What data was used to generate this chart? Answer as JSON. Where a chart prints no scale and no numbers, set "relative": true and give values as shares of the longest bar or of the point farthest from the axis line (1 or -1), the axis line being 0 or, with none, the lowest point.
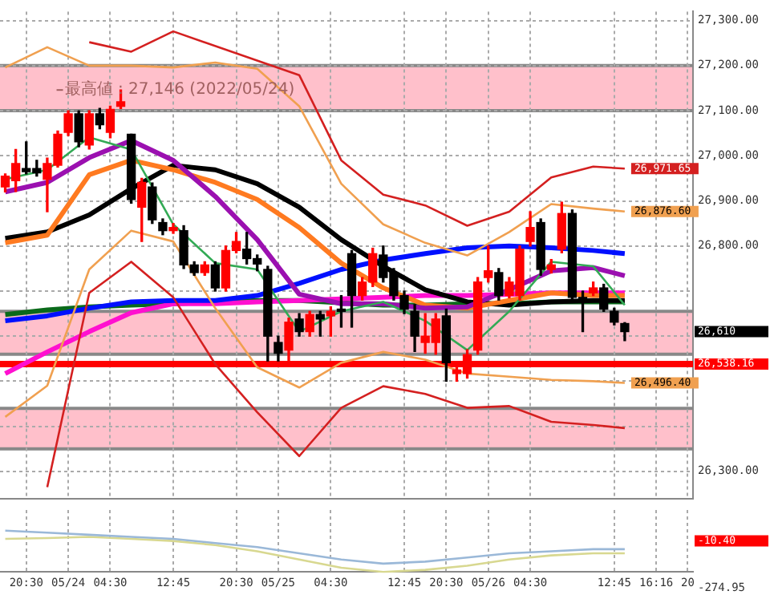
{
  "chart_data": [
    {
      "type": "candlestick",
      "categories": [
        null,
        null,
        null,
        null,
        null,
        null,
        null,
        null,
        null,
        null,
        null,
        null,
        null,
        null,
        null,
        null,
        null,
        null,
        null,
        null,
        null,
        null,
        null,
        null,
        null,
        null,
        null,
        null,
        null,
        null,
        null,
        null,
        null,
        null,
        null,
        null,
        null,
        null,
        null,
        null,
        null,
        null,
        null,
        null,
        null,
        null,
        null,
        null,
        null,
        null,
        null,
        null,
        null,
        null,
        null,
        null,
        null,
        null,
        null,
        null,
        null,
        null,
        null,
        null,
        null,
        null
      ],
      "ohlc": [
        [
          26931,
          26960,
          26920,
          26955
        ],
        [
          26945,
          27014,
          26921,
          26983
        ],
        [
          26972,
          27031,
          26960,
          26965
        ],
        [
          26972,
          26990,
          26955,
          26962
        ],
        [
          26948,
          26995,
          26876,
          26983
        ],
        [
          26979,
          27055,
          26975,
          27048
        ],
        [
          27052,
          27100,
          27045,
          27093
        ],
        [
          27093,
          27100,
          27020,
          27031
        ],
        [
          27024,
          27100,
          27015,
          27093
        ],
        [
          27093,
          27105,
          27060,
          27069
        ],
        [
          27052,
          27110,
          27040,
          27103
        ],
        [
          27110,
          27146,
          27105,
          27120
        ],
        [
          27048,
          27048,
          26895,
          26903
        ],
        [
          26886,
          26950,
          26810,
          26941
        ],
        [
          26931,
          26940,
          26850,
          26858
        ],
        [
          26852,
          26860,
          26825,
          26834
        ],
        [
          26834,
          26850,
          26828,
          26841
        ],
        [
          26834,
          26845,
          26750,
          26758
        ],
        [
          26758,
          26765,
          26735,
          26741
        ],
        [
          26741,
          26765,
          26735,
          26758
        ],
        [
          26758,
          26765,
          26700,
          26707
        ],
        [
          26707,
          26800,
          26700,
          26790
        ],
        [
          26790,
          26830,
          26785,
          26810
        ],
        [
          26793,
          26830,
          26760,
          26772
        ],
        [
          26772,
          26780,
          26745,
          26760
        ],
        [
          26748,
          26755,
          26545,
          26600
        ],
        [
          26586,
          26600,
          26545,
          26562
        ],
        [
          26569,
          26640,
          26540,
          26631
        ],
        [
          26638,
          26650,
          26600,
          26610
        ],
        [
          26610,
          26655,
          26600,
          26648
        ],
        [
          26648,
          26655,
          26600,
          26638
        ],
        [
          26645,
          26665,
          26600,
          26655
        ],
        [
          26660,
          26690,
          26620,
          26655
        ],
        [
          26783,
          26790,
          26620,
          26690
        ],
        [
          26690,
          26730,
          26680,
          26720
        ],
        [
          26720,
          26795,
          26710,
          26783
        ],
        [
          26780,
          26800,
          26720,
          26730
        ],
        [
          26741,
          26750,
          26680,
          26690
        ],
        [
          26690,
          26700,
          26650,
          26660
        ],
        [
          26655,
          26670,
          26566,
          26600
        ],
        [
          26586,
          26650,
          26562,
          26600
        ],
        [
          26586,
          26650,
          26560,
          26638
        ],
        [
          26645,
          26660,
          26500,
          26541
        ],
        [
          26517,
          26535,
          26500,
          26525
        ],
        [
          26517,
          26570,
          26507,
          26559
        ],
        [
          26569,
          26730,
          26560,
          26720
        ],
        [
          26730,
          26800,
          26720,
          26745
        ],
        [
          26741,
          26750,
          26680,
          26690
        ],
        [
          26690,
          26730,
          26685,
          26720
        ],
        [
          26690,
          26800,
          26680,
          26793
        ],
        [
          26810,
          26876,
          26800,
          26841
        ],
        [
          26852,
          26860,
          26735,
          26748
        ],
        [
          26748,
          26770,
          26740,
          26758
        ],
        [
          26793,
          26897,
          26785,
          26872
        ],
        [
          26872,
          26880,
          26680,
          26686
        ],
        [
          26686,
          26700,
          26610,
          26680
        ],
        [
          26696,
          26720,
          26690,
          26707
        ],
        [
          26707,
          26715,
          26655,
          26660
        ],
        [
          26655,
          26662,
          26625,
          26631
        ],
        [
          26628,
          26630,
          26590,
          26610
        ],
        null,
        null,
        null,
        null,
        null,
        null
      ],
      "series": [
        {
          "type": "line",
          "color": "#d42020",
          "values": [
            null,
            null,
            null,
            null,
            null,
            null,
            null,
            null,
            27252,
            null,
            null,
            null,
            27231,
            null,
            null,
            null,
            27276,
            null,
            null,
            null,
            null,
            null,
            null,
            null,
            null,
            null,
            null,
            null,
            27179,
            null,
            null,
            null,
            26990,
            null,
            null,
            null,
            26914,
            null,
            null,
            null,
            26890,
            null,
            null,
            null,
            26845,
            null,
            null,
            null,
            26876,
            null,
            null,
            null,
            26952,
            null,
            null,
            null,
            26976,
            null,
            null,
            26971.65,
            null,
            null,
            null,
            null,
            null,
            null
          ],
          "value_labels": [
            null,
            null,
            null,
            null,
            null,
            null,
            null,
            null,
            null,
            null,
            null,
            null,
            null,
            null,
            null,
            null,
            null,
            null,
            null,
            null,
            null,
            null,
            null,
            null,
            null,
            null,
            null,
            null,
            null,
            null,
            null,
            null,
            null,
            null,
            null,
            null,
            null,
            null,
            null,
            null,
            null,
            null,
            null,
            null,
            null,
            null,
            null,
            null,
            null,
            null,
            null,
            null,
            null,
            null,
            null,
            null,
            null,
            null,
            null,
            "26,971.65",
            null,
            null,
            null,
            null,
            null,
            null
          ]
        },
        {
          "type": "line",
          "color": "#f0a050",
          "values": [
            27196,
            null,
            null,
            null,
            27241,
            null,
            null,
            null,
            27200,
            null,
            null,
            null,
            27200,
            null,
            null,
            null,
            27196,
            null,
            null,
            null,
            27207,
            null,
            null,
            null,
            27193,
            null,
            null,
            null,
            27110,
            null,
            null,
            null,
            26938,
            null,
            null,
            null,
            26848,
            null,
            null,
            null,
            26807,
            null,
            null,
            null,
            26779,
            null,
            null,
            null,
            26831,
            null,
            null,
            null,
            26893,
            null,
            null,
            null,
            26883,
            null,
            null,
            26876.6,
            null,
            null,
            null,
            null,
            null,
            null
          ],
          "value_labels": [
            null,
            null,
            null,
            null,
            null,
            null,
            null,
            null,
            null,
            null,
            null,
            null,
            null,
            null,
            null,
            null,
            null,
            null,
            null,
            null,
            null,
            null,
            null,
            null,
            null,
            null,
            null,
            null,
            null,
            null,
            null,
            null,
            null,
            null,
            null,
            null,
            null,
            null,
            null,
            null,
            null,
            null,
            null,
            null,
            null,
            null,
            null,
            null,
            null,
            null,
            null,
            null,
            null,
            null,
            null,
            null,
            null,
            null,
            null,
            "26,876.60",
            null,
            null,
            null,
            null,
            null,
            null
          ]
        },
        {
          "type": "line",
          "color": "#33aa55",
          "values": [
            26948,
            null,
            null,
            null,
            26969,
            null,
            null,
            null,
            27041,
            null,
            null,
            null,
            27014,
            null,
            null,
            null,
            26848,
            null,
            null,
            null,
            26762,
            null,
            null,
            null,
            26748,
            null,
            null,
            null,
            26610,
            null,
            null,
            null,
            26655,
            null,
            null,
            null,
            26676,
            null,
            null,
            null,
            26634,
            null,
            null,
            null,
            26569,
            null,
            null,
            null,
            26655,
            null,
            null,
            null,
            26765,
            null,
            null,
            null,
            26755,
            null,
            null,
            26669,
            null,
            null,
            null,
            null,
            null,
            null
          ]
        },
        {
          "type": "line",
          "color": "#f0a050",
          "values": [
            26421,
            null,
            null,
            null,
            26490,
            null,
            null,
            null,
            26748,
            null,
            null,
            null,
            26834,
            null,
            null,
            null,
            26810,
            null,
            null,
            null,
            26662,
            null,
            null,
            null,
            26531,
            null,
            null,
            null,
            26486,
            null,
            null,
            null,
            26541,
            null,
            null,
            null,
            26565,
            null,
            null,
            null,
            26548,
            null,
            null,
            null,
            26517,
            null,
            null,
            null,
            26510,
            null,
            null,
            null,
            26503,
            null,
            null,
            null,
            26500,
            null,
            null,
            26496.4,
            null,
            null,
            null,
            null,
            null,
            null
          ],
          "value_labels": [
            null,
            null,
            null,
            null,
            null,
            null,
            null,
            null,
            null,
            null,
            null,
            null,
            null,
            null,
            null,
            null,
            null,
            null,
            null,
            null,
            null,
            null,
            null,
            null,
            null,
            null,
            null,
            null,
            null,
            null,
            null,
            null,
            null,
            null,
            null,
            null,
            null,
            null,
            null,
            null,
            null,
            null,
            null,
            null,
            null,
            null,
            null,
            null,
            null,
            null,
            null,
            null,
            null,
            null,
            null,
            null,
            null,
            null,
            null,
            "26,496.40",
            null,
            null,
            null,
            null,
            null,
            null
          ]
        },
        {
          "type": "line",
          "color": "#d42020",
          "values": [
            null,
            null,
            null,
            null,
            26265,
            null,
            null,
            null,
            26696,
            null,
            null,
            null,
            26765,
            null,
            null,
            null,
            26686,
            null,
            null,
            null,
            26538,
            null,
            null,
            null,
            26431,
            null,
            null,
            null,
            26334,
            null,
            null,
            null,
            26441,
            null,
            null,
            null,
            26489,
            null,
            null,
            null,
            26472,
            null,
            null,
            null,
            26441,
            null,
            null,
            null,
            26445,
            null,
            null,
            null,
            26410,
            null,
            null,
            null,
            26403,
            null,
            null,
            26396,
            null,
            null,
            null,
            null,
            null,
            null
          ]
        },
        {
          "type": "line",
          "color": "#9b10b0",
          "values": [
            26920,
            null,
            null,
            null,
            26941,
            null,
            null,
            null,
            26996,
            null,
            null,
            null,
            27034,
            null,
            null,
            null,
            26990,
            null,
            null,
            null,
            26910,
            null,
            null,
            null,
            26814,
            null,
            null,
            null,
            26693,
            null,
            null,
            null,
            26672,
            null,
            null,
            null,
            26672,
            null,
            null,
            null,
            26662,
            null,
            null,
            null,
            26665,
            null,
            null,
            null,
            26703,
            null,
            null,
            null,
            26745,
            null,
            null,
            null,
            26752,
            null,
            null,
            26734,
            null,
            null,
            null,
            null,
            null,
            null
          ]
        },
        {
          "type": "line",
          "color": "#ff7a20",
          "values": [
            26807,
            null,
            null,
            null,
            26824,
            null,
            null,
            null,
            26958,
            null,
            null,
            null,
            26990,
            null,
            null,
            null,
            26969,
            null,
            null,
            null,
            26941,
            null,
            null,
            null,
            26903,
            null,
            null,
            null,
            26841,
            null,
            null,
            null,
            26762,
            null,
            null,
            null,
            26707,
            null,
            null,
            null,
            26669,
            null,
            null,
            null,
            26662,
            null,
            null,
            null,
            26679,
            null,
            null,
            null,
            26696,
            null,
            null,
            null,
            26690,
            null,
            null,
            26690,
            null,
            null,
            null,
            null,
            null,
            null
          ]
        },
        {
          "type": "line",
          "color": "#000000",
          "values": [
            26817,
            null,
            null,
            null,
            26831,
            null,
            null,
            null,
            26869,
            null,
            null,
            null,
            26927,
            null,
            null,
            null,
            26979,
            null,
            null,
            null,
            26969,
            null,
            null,
            null,
            26938,
            null,
            null,
            null,
            26886,
            null,
            null,
            null,
            26814,
            null,
            null,
            null,
            26755,
            null,
            null,
            null,
            26703,
            null,
            null,
            null,
            26676,
            null,
            null,
            null,
            26669,
            null,
            null,
            null,
            26676,
            null,
            null,
            null,
            26679,
            null,
            null,
            26679,
            null,
            null,
            null,
            null,
            null,
            null
          ]
        },
        {
          "type": "line",
          "color": "#0010ff",
          "values": [
            26634,
            null,
            null,
            null,
            26645,
            null,
            null,
            null,
            26662,
            null,
            null,
            null,
            26676,
            null,
            null,
            null,
            26679,
            null,
            null,
            null,
            26679,
            null,
            null,
            null,
            26690,
            null,
            null,
            null,
            26717,
            null,
            null,
            null,
            26748,
            null,
            null,
            null,
            26769,
            null,
            null,
            null,
            26783,
            null,
            null,
            null,
            26796,
            null,
            null,
            null,
            26800,
            null,
            null,
            null,
            26796,
            null,
            null,
            null,
            26790,
            null,
            null,
            26783,
            null,
            null,
            null,
            null,
            null,
            null
          ]
        },
        {
          "type": "line",
          "color": "#ff10d0",
          "values": [
            26517,
            null,
            null,
            null,
            26565,
            null,
            null,
            null,
            26610,
            null,
            null,
            null,
            26652,
            null,
            null,
            null,
            26672,
            null,
            null,
            null,
            26672,
            null,
            null,
            null,
            26676,
            null,
            null,
            null,
            26679,
            null,
            null,
            null,
            null,
            null,
            null,
            null,
            26686,
            null,
            null,
            null,
            26690,
            null,
            null,
            null,
            26690,
            null,
            null,
            null,
            26693,
            null,
            null,
            null,
            26696,
            null,
            null,
            null,
            26696,
            null,
            null,
            26696,
            null,
            null,
            null,
            null,
            null,
            null
          ]
        },
        {
          "type": "line",
          "color": "#0a6a1a",
          "values": [
            26648,
            null,
            null,
            null,
            26658,
            null,
            null,
            null,
            26665,
            null,
            null,
            null,
            26669,
            null,
            null,
            null,
            26672,
            null,
            null,
            null,
            null,
            null,
            null,
            null,
            26679,
            null,
            null,
            null,
            26679,
            null,
            null,
            null,
            null,
            null,
            null,
            null,
            26669,
            null,
            null,
            null,
            26669,
            null,
            null,
            null,
            26672,
            null,
            null,
            null,
            26672,
            null,
            null,
            null,
            26676,
            null,
            null,
            null,
            26676,
            null,
            null,
            26676,
            null,
            null,
            null,
            null,
            null,
            null
          ]
        }
      ],
      "ylim": [
        26240,
        27320
      ],
      "yticks": [
        {
          "value": 26300,
          "label": "26,300.00"
        },
        {
          "value": 26400,
          "label": null
        },
        {
          "value": 26500,
          "label": null
        },
        {
          "value": 26600,
          "label": null
        },
        {
          "value": 26700,
          "label": null
        },
        {
          "value": 26800,
          "label": "26,800.00"
        },
        {
          "value": 26900,
          "label": "26,900.00"
        },
        {
          "value": 27000,
          "label": "27,000.00"
        },
        {
          "value": 27100,
          "label": "27,100.00"
        },
        {
          "value": 27200,
          "label": "27,200.00"
        },
        {
          "value": 27300,
          "label": "27,300.00"
        }
      ],
      "bands": [
        {
          "axis": "y",
          "from": 27100,
          "to": 27200,
          "color": "#ffc0cb"
        },
        {
          "axis": "y",
          "from": 26560,
          "to": 26655,
          "color": "#ffc0cb"
        },
        {
          "axis": "y",
          "from": 26350,
          "to": 26440,
          "color": "#ffc0cb"
        }
      ],
      "ref_lines": [
        {
          "axis": "y",
          "value": 26538.16,
          "label": "26,538.16",
          "color": "#ff0000"
        }
      ],
      "annotations": [
        "最高値 : 27,146 (2022/05/24)",
        "26,610"
      ],
      "grid": true,
      "legend": false,
      "marker": "none",
      "tick_labels": "y"
    },
    {
      "type": "line",
      "relative": true,
      "categories": [
        null,
        null,
        "20:30",
        null,
        null,
        null,
        "05/24",
        null,
        null,
        null,
        "04:30",
        null,
        null,
        null,
        null,
        null,
        "12:45",
        null,
        null,
        null,
        null,
        null,
        "20:30",
        null,
        null,
        null,
        "05/25",
        null,
        null,
        null,
        null,
        "04:30",
        null,
        null,
        null,
        null,
        null,
        null,
        "12:45",
        null,
        null,
        null,
        "20:30",
        null,
        null,
        null,
        "05/26",
        null,
        null,
        null,
        "04:30",
        null,
        null,
        null,
        null,
        null,
        null,
        null,
        "12:45",
        null,
        null,
        null,
        "16:16",
        null,
        null,
        "20"
      ],
      "series": [
        {
          "color": "#9ab8d8",
          "values": [
            1,
            null,
            null,
            null,
            0.95,
            null,
            null,
            null,
            0.9,
            null,
            null,
            null,
            0.85,
            null,
            null,
            null,
            0.8,
            null,
            null,
            null,
            0.7,
            null,
            null,
            null,
            0.6,
            null,
            null,
            null,
            0.45,
            null,
            null,
            null,
            0.3,
            null,
            null,
            null,
            0.2,
            null,
            null,
            null,
            0.25,
            null,
            null,
            null,
            0.35,
            null,
            null,
            null,
            0.45,
            null,
            null,
            null,
            0.5,
            null,
            null,
            null,
            0.55,
            null,
            null,
            0.55,
            null,
            null,
            null,
            null,
            null,
            null
          ]
        },
        {
          "color": "#d8d890",
          "values": [
            0.8,
            null,
            null,
            null,
            0.82,
            null,
            null,
            null,
            0.85,
            null,
            null,
            null,
            0.8,
            null,
            null,
            null,
            0.75,
            null,
            null,
            null,
            0.65,
            null,
            null,
            null,
            0.5,
            null,
            null,
            null,
            0.3,
            null,
            null,
            null,
            0.1,
            null,
            null,
            null,
            0,
            null,
            null,
            null,
            0.05,
            null,
            null,
            null,
            0.15,
            null,
            null,
            null,
            0.3,
            null,
            null,
            null,
            0.4,
            null,
            null,
            null,
            0.45,
            null,
            null,
            0.45,
            null,
            null,
            null,
            null,
            null,
            null
          ]
        }
      ],
      "annotations": [
        "-10.40",
        "-274.95"
      ],
      "grid": "x",
      "legend": false,
      "marker": "none",
      "tick_labels": "x"
    }
  ]
}
